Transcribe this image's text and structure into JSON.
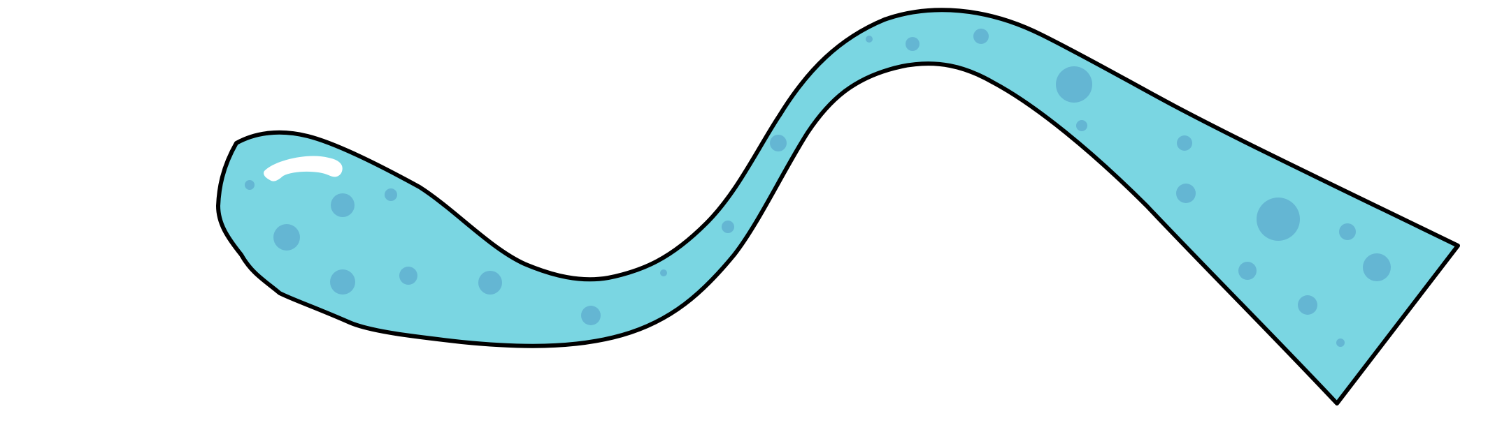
{
  "illustration": {
    "subject": "wavy-blob-shape",
    "colors": {
      "background": "#ffffff",
      "fill": "#7ad6e2",
      "outline": "#000000",
      "spots": "#64b6d3",
      "highlight": "#ffffff"
    }
  }
}
